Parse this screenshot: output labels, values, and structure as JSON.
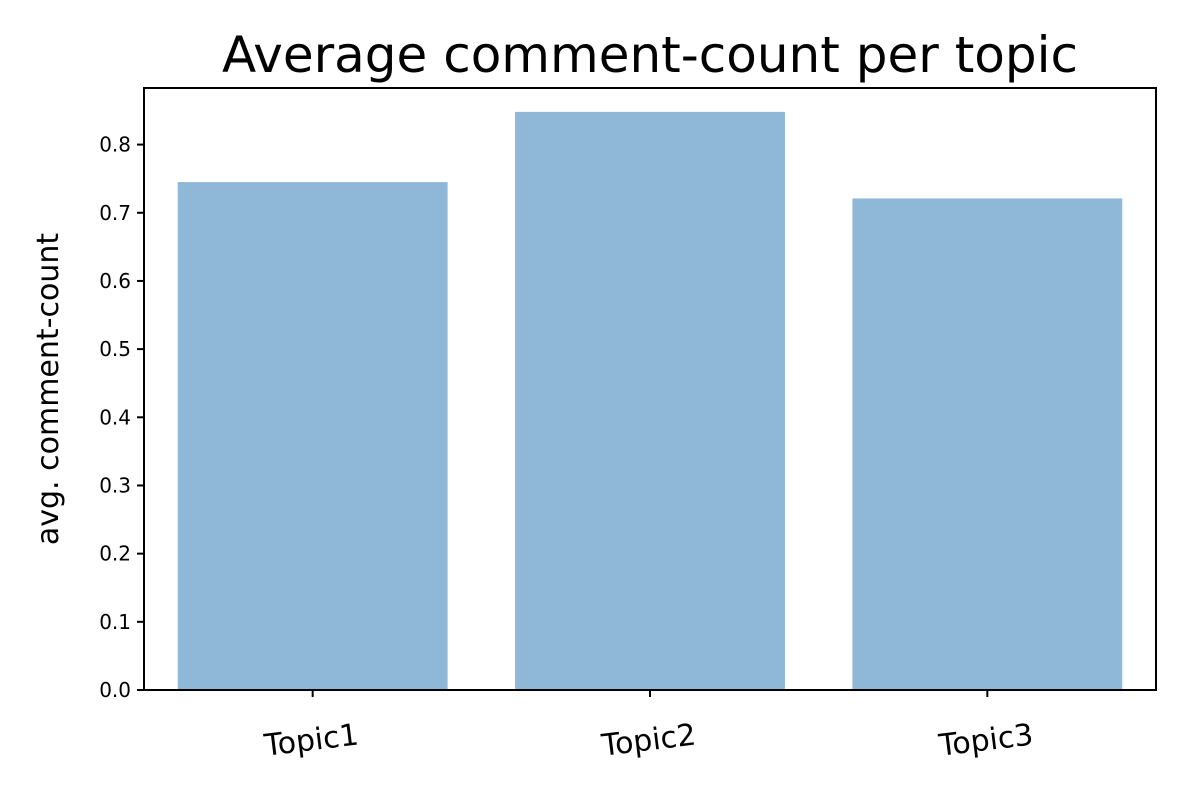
{
  "chart_data": {
    "type": "bar",
    "title": "Average comment-count per topic",
    "xlabel": "",
    "ylabel": "avg. comment-count",
    "categories": [
      "Topic1",
      "Topic2",
      "Topic3"
    ],
    "values": [
      0.745,
      0.848,
      0.721
    ],
    "ylim": [
      0,
      0.883
    ],
    "yticks": [
      "0.0",
      "0.1",
      "0.2",
      "0.3",
      "0.4",
      "0.5",
      "0.6",
      "0.7",
      "0.8"
    ],
    "bar_color": "#8fb8d8",
    "grid": false,
    "legend": "none"
  }
}
